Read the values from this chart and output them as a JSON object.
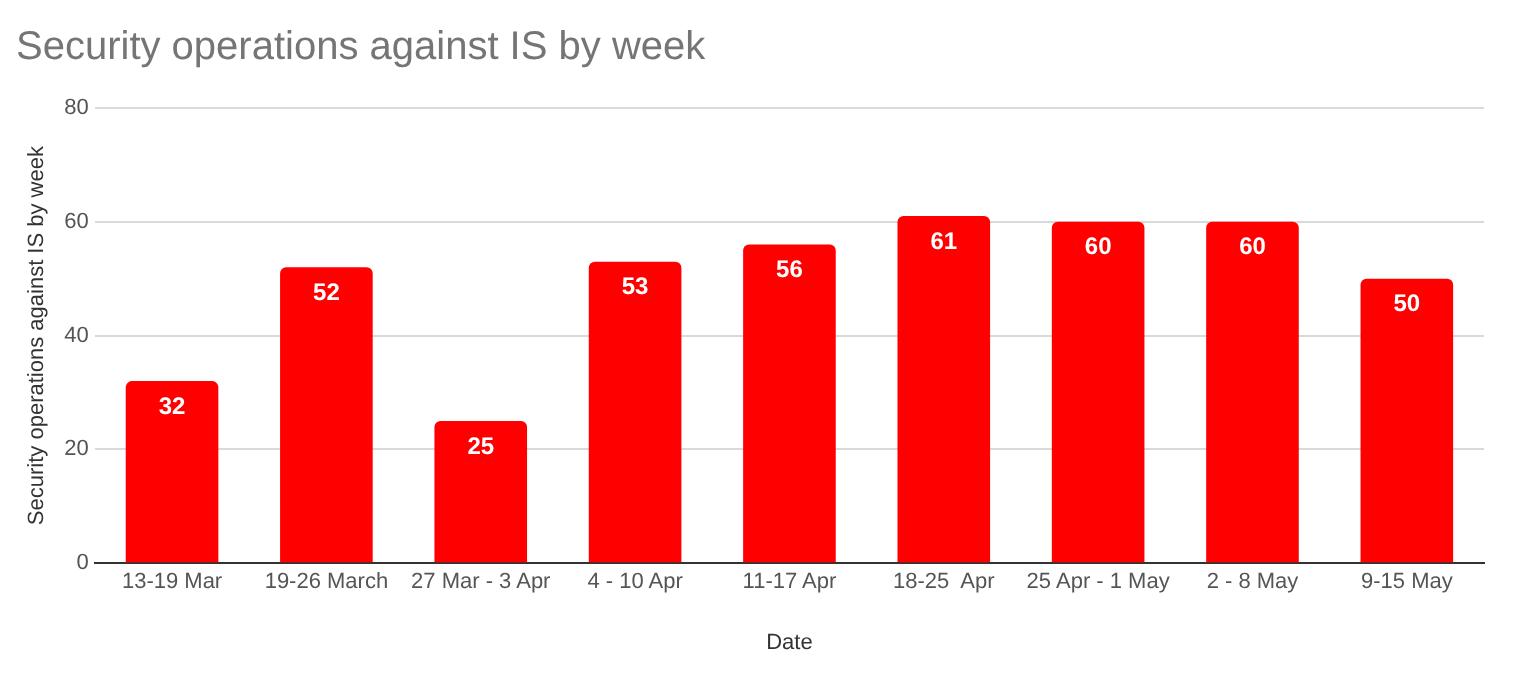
{
  "chart_data": {
    "type": "bar",
    "title": "Security operations against IS by week",
    "xlabel": "Date",
    "ylabel": "Security operations against IS by week",
    "categories": [
      "13-19 Mar",
      "19-26 March",
      "27 Mar - 3 Apr",
      "4 - 10 Apr",
      "11-17 Apr",
      "18-25  Apr",
      "25 Apr - 1 May",
      "2 - 8 May",
      "9-15 May"
    ],
    "values": [
      32,
      52,
      25,
      53,
      56,
      61,
      60,
      60,
      50
    ],
    "color": "#ff0000",
    "ylim": [
      0,
      80
    ],
    "yticks": [
      0,
      20,
      40,
      60,
      80
    ],
    "grid": "y",
    "data_labels": true
  }
}
